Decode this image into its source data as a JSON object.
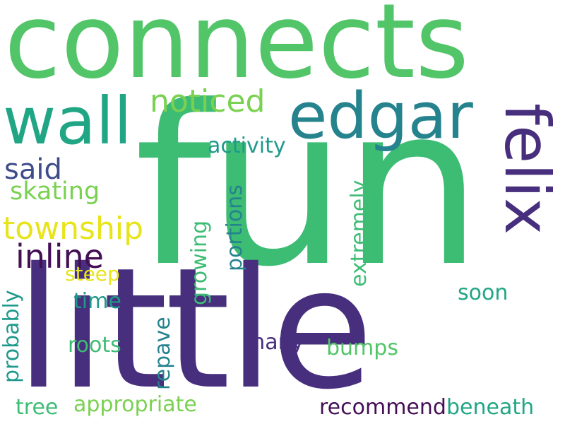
{
  "words": {
    "fun": "fun",
    "connects": "connects",
    "little": "little",
    "edgar": "edgar",
    "wall": "wall",
    "felix": "felix",
    "noticed": "noticed",
    "activity": "activity",
    "said": "said",
    "skating": "skating",
    "township": "township",
    "inline": "inline",
    "steep": "steep",
    "time": "time",
    "probably": "probably",
    "roots": "roots",
    "repave": "repave",
    "growing": "growing",
    "portions": "portions",
    "extremely": "extremely",
    "soon": "soon",
    "many": "many",
    "bumps": "bumps",
    "tree": "tree",
    "appropriate": "appropriate",
    "recommend": "recommend",
    "beneath": "beneath"
  },
  "colors": {
    "green_bright": "#52c569",
    "green_mid": "#3dbc74",
    "teal": "#21a685",
    "teal_dark": "#1f998a",
    "blue_teal": "#25838e",
    "blue_gray": "#3e4c8a",
    "purple": "#472f7d",
    "purple_dark": "#440f54",
    "yellow": "#e7e419",
    "yellow_green": "#a2da37",
    "lime": "#7ad151"
  }
}
